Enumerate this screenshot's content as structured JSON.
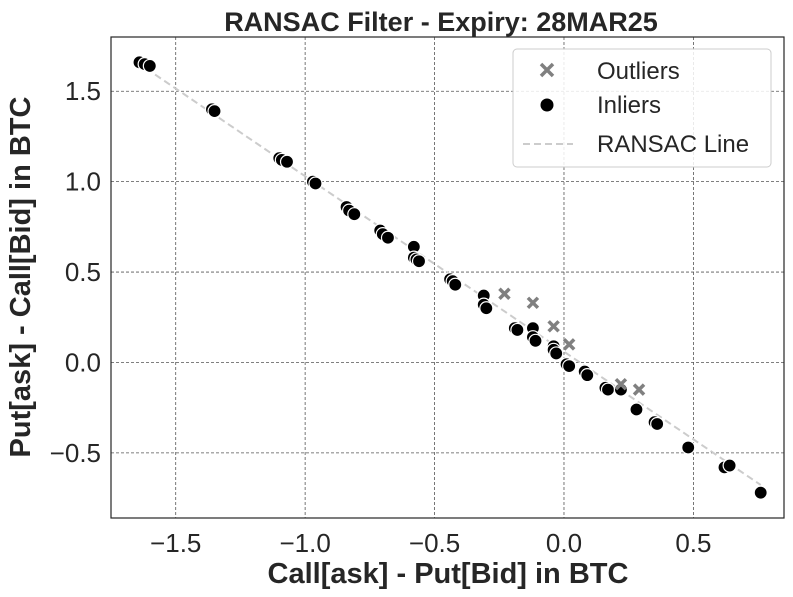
{
  "chart_data": {
    "type": "scatter",
    "title": "RANSAC Filter - Expiry: 28MAR25",
    "xlabel": "Call[ask] - Put[Bid] in BTC",
    "ylabel": "Put[ask] - Call[Bid] in BTC",
    "xlim": [
      -1.75,
      0.85
    ],
    "ylim": [
      -0.86,
      1.8
    ],
    "xticks": [
      -1.5,
      -1.0,
      -0.5,
      0.0,
      0.5
    ],
    "xtick_labels": [
      "−1.5",
      "−1.0",
      "−0.5",
      "0.0",
      "0.5"
    ],
    "yticks": [
      -0.5,
      0.0,
      0.5,
      1.0,
      1.5
    ],
    "ytick_labels": [
      "−0.5",
      "0.0",
      "0.5",
      "1.0",
      "1.5"
    ],
    "grid": true,
    "legend_position": "top-right",
    "series": [
      {
        "name": "Outliers",
        "marker": "x",
        "color": "#808080",
        "points": [
          [
            -0.23,
            0.38
          ],
          [
            -0.12,
            0.33
          ],
          [
            -0.04,
            0.2
          ],
          [
            0.02,
            0.1
          ],
          [
            0.22,
            -0.12
          ],
          [
            0.29,
            -0.15
          ]
        ]
      },
      {
        "name": "Inliers",
        "marker": "circle",
        "color": "#000000",
        "points": [
          [
            -1.64,
            1.66
          ],
          [
            -1.62,
            1.65
          ],
          [
            -1.6,
            1.64
          ],
          [
            -1.36,
            1.4
          ],
          [
            -1.35,
            1.39
          ],
          [
            -1.1,
            1.13
          ],
          [
            -1.09,
            1.12
          ],
          [
            -1.07,
            1.11
          ],
          [
            -0.97,
            1.0
          ],
          [
            -0.96,
            0.99
          ],
          [
            -0.84,
            0.86
          ],
          [
            -0.83,
            0.84
          ],
          [
            -0.81,
            0.82
          ],
          [
            -0.71,
            0.73
          ],
          [
            -0.7,
            0.71
          ],
          [
            -0.68,
            0.69
          ],
          [
            -0.58,
            0.64
          ],
          [
            -0.58,
            0.58
          ],
          [
            -0.57,
            0.57
          ],
          [
            -0.56,
            0.56
          ],
          [
            -0.44,
            0.46
          ],
          [
            -0.43,
            0.45
          ],
          [
            -0.42,
            0.43
          ],
          [
            -0.31,
            0.37
          ],
          [
            -0.31,
            0.32
          ],
          [
            -0.3,
            0.3
          ],
          [
            -0.19,
            0.19
          ],
          [
            -0.18,
            0.18
          ],
          [
            -0.12,
            0.19
          ],
          [
            -0.12,
            0.14
          ],
          [
            -0.11,
            0.12
          ],
          [
            -0.04,
            0.09
          ],
          [
            -0.04,
            0.07
          ],
          [
            -0.03,
            0.05
          ],
          [
            0.01,
            -0.01
          ],
          [
            0.02,
            -0.02
          ],
          [
            0.08,
            -0.05
          ],
          [
            0.09,
            -0.07
          ],
          [
            0.16,
            -0.14
          ],
          [
            0.17,
            -0.15
          ],
          [
            0.22,
            -0.15
          ],
          [
            0.28,
            -0.26
          ],
          [
            0.35,
            -0.33
          ],
          [
            0.36,
            -0.34
          ],
          [
            0.48,
            -0.47
          ],
          [
            0.62,
            -0.58
          ],
          [
            0.64,
            -0.57
          ],
          [
            0.76,
            -0.72
          ]
        ]
      },
      {
        "name": "RANSAC Line",
        "marker": "dashed-line",
        "color": "#cccccc",
        "slope": -0.97,
        "intercept": 0.06,
        "x_range": [
          -1.65,
          0.76
        ]
      }
    ]
  }
}
